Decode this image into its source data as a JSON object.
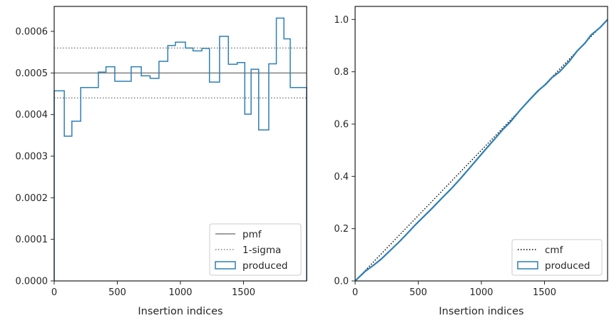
{
  "chart_data": [
    {
      "type": "line",
      "xlabel": "Insertion indices",
      "ylabel": "",
      "xlim": [
        0,
        2000
      ],
      "ylim": [
        0,
        0.00066
      ],
      "x_ticks": [
        0,
        500,
        1000,
        1500
      ],
      "x_tick_labels": [
        "0",
        "500",
        "1000",
        "1500"
      ],
      "y_ticks": [
        0,
        0.0001,
        0.0002,
        0.0003,
        0.0004,
        0.0005,
        0.0006
      ],
      "y_tick_labels": [
        "0.0000",
        "0.0001",
        "0.0002",
        "0.0003",
        "0.0004",
        "0.0005",
        "0.0006"
      ],
      "grid": false,
      "legend_position": "lower-right",
      "reference_lines": [
        {
          "name": "pmf",
          "value": 0.0005,
          "style": "solid",
          "color": "#808080"
        },
        {
          "name": "1-sigma",
          "values": [
            0.00044,
            0.00056
          ],
          "style": "dotted",
          "color": "#808080"
        }
      ],
      "histogram": {
        "name": "produced",
        "color": "#2f7fb5",
        "bin_edges": [
          0,
          80,
          140,
          210,
          350,
          410,
          480,
          610,
          690,
          760,
          830,
          900,
          960,
          1040,
          1100,
          1170,
          1230,
          1310,
          1380,
          1450,
          1510,
          1560,
          1620,
          1700,
          1760,
          1820,
          1870,
          1940,
          2000
        ],
        "values": [
          0.000457,
          0.000348,
          0.000384,
          0.000465,
          0.000502,
          0.000515,
          0.00048,
          0.000515,
          0.000493,
          0.000487,
          0.000528,
          0.000566,
          0.000574,
          0.00056,
          0.000553,
          0.000559,
          0.000478,
          0.000588,
          0.000521,
          0.000525,
          0.000401,
          0.000509,
          0.000363,
          0.000522,
          0.000632,
          0.000582,
          0.000465,
          0.000465
        ]
      },
      "legend": [
        "pmf",
        "1-sigma",
        "produced"
      ]
    },
    {
      "type": "line",
      "xlabel": "Insertion indices",
      "ylabel": "",
      "xlim": [
        0,
        2000
      ],
      "ylim": [
        0,
        1.05
      ],
      "x_ticks": [
        0,
        500,
        1000,
        1500
      ],
      "x_tick_labels": [
        "0",
        "500",
        "1000",
        "1500"
      ],
      "y_ticks": [
        0,
        0.2,
        0.4,
        0.6,
        0.8,
        1.0
      ],
      "y_tick_labels": [
        "0.0",
        "0.2",
        "0.4",
        "0.6",
        "0.8",
        "1.0"
      ],
      "grid": false,
      "legend_position": "lower-right",
      "series": [
        {
          "name": "cmf",
          "style": "dotted",
          "color": "#000000",
          "x": [
            0,
            2000
          ],
          "y": [
            0,
            1.0
          ]
        },
        {
          "name": "produced",
          "style": "solid",
          "color": "#2f7fb5",
          "x": [
            0,
            80,
            140,
            210,
            350,
            410,
            480,
            610,
            690,
            760,
            830,
            900,
            960,
            1040,
            1100,
            1170,
            1230,
            1310,
            1380,
            1450,
            1510,
            1560,
            1620,
            1700,
            1760,
            1820,
            1870,
            1940,
            2000
          ],
          "y": [
            0,
            0.037,
            0.058,
            0.085,
            0.15,
            0.18,
            0.216,
            0.278,
            0.318,
            0.352,
            0.389,
            0.428,
            0.462,
            0.507,
            0.54,
            0.579,
            0.608,
            0.655,
            0.692,
            0.728,
            0.752,
            0.778,
            0.8,
            0.842,
            0.88,
            0.909,
            0.941,
            0.969,
            1.0
          ]
        }
      ],
      "legend": [
        "cmf",
        "produced"
      ]
    }
  ]
}
